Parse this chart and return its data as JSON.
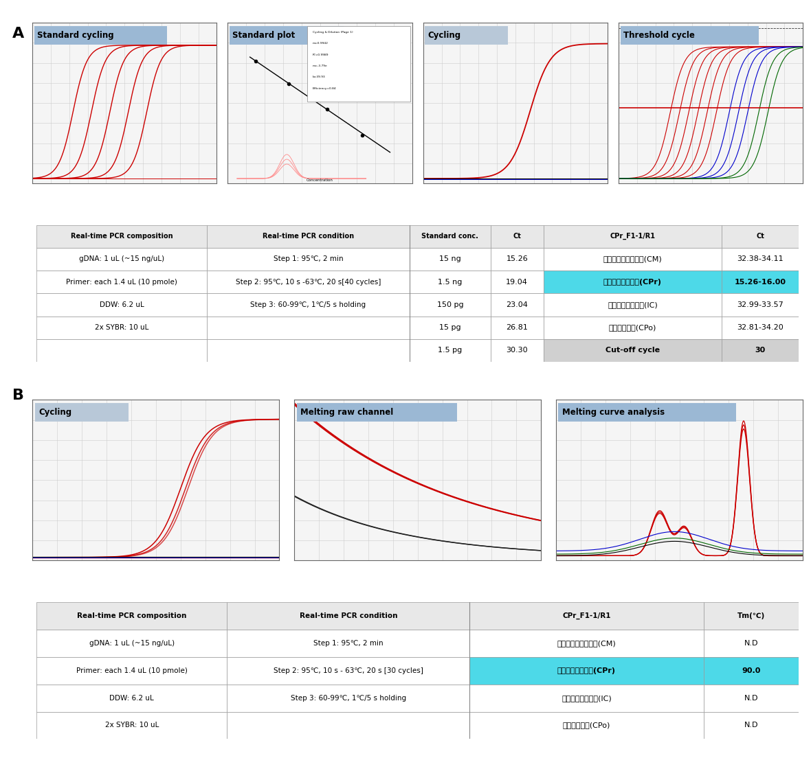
{
  "section_A_label": "A",
  "section_B_label": "B",
  "panel_titles_A": [
    "Standard cycling",
    "Standard plot",
    "Cycling",
    "Threshold cycle"
  ],
  "panel_titles_B": [
    "Cycling",
    "Melting raw channel",
    "Melting curve analysis"
  ],
  "panel_title_bg": "#9bb8d4",
  "panel_title_bg_light": "#b8c8d8",
  "table_A_header": [
    "Real-time PCR composition",
    "Real-time PCR condition",
    "Standard conc.",
    "Ct",
    "CPr_F1-1/R1",
    "Ct"
  ],
  "table_A_rows": [
    [
      "gDNA: 1 uL (~15 ng/uL)",
      "Step 1: 95℃, 2 min",
      "15 ng",
      "15.26",
      "밀리타리스동충하초(CM)",
      "32.38-34.11"
    ],
    [
      "Primer: each 1.4 uL (10 pmole)",
      "Step 2: 95℃, 10 s -63℃, 20 s[40 cycles]",
      "1.5 ng",
      "19.04",
      "붉은자루동충하초(CPr)",
      "15.26-16.00"
    ],
    [
      "DDW: 6.2 uL",
      "Step 3: 60-99℃, 1℃/5 s holding",
      "150 pg",
      "23.04",
      "매미눈꽃동충하초(IC)",
      "32.99-33.57"
    ],
    [
      "2x SYBR: 10 uL",
      "",
      "15 pg",
      "26.81",
      "눈꽃동충하초(CPo)",
      "32.81-34.20"
    ],
    [
      "",
      "",
      "1.5 pg",
      "30.30",
      "Cut-off cycle",
      "30"
    ]
  ],
  "table_B_header": [
    "Real-time PCR composition",
    "Real-time PCR condition",
    "CPr_F1-1/R1",
    "Tm(℃)"
  ],
  "table_B_rows": [
    [
      "gDNA: 1 uL (~15 ng/uL)",
      "Step 1: 95℃, 2 min",
      "밀리타리스동충하초(CM)",
      "N.D"
    ],
    [
      "Primer: each 1.4 uL (10 pmole)",
      "Step 2: 95℃, 10 s - 63℃, 20 s [30 cycles]",
      "붉은자루동충하초(CPr)",
      "90.0"
    ],
    [
      "DDW: 6.2 uL",
      "Step 3: 60-99℃, 1℃/5 s holding",
      "매미눈꽃동충하초(IC)",
      "N.D"
    ],
    [
      "2x SYBR: 10 uL",
      "",
      "눈꽃동충하초(CPo)",
      "N.D"
    ]
  ],
  "cyan_row_A": 1,
  "cyan_row_B": 1,
  "gray_row_A": 4,
  "cyan_color": "#4dd9e8",
  "gray_color": "#d0d0d0",
  "header_bg": "#e8e8e8",
  "background_color": "#ffffff",
  "grid_color": "#cccccc",
  "red_color": "#cc0000",
  "blue_color": "#0000cc",
  "green_color": "#006600"
}
